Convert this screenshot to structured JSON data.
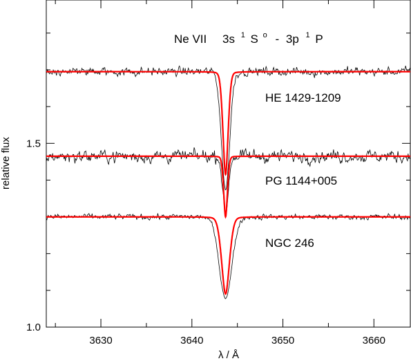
{
  "chart_data": {
    "type": "line",
    "title": {
      "ion": "Ne VII",
      "lower_cfg": "3s",
      "lower_mult": "1",
      "lower_term": "S",
      "lower_parity": "o",
      "dash": "-",
      "upper_cfg": "3p",
      "upper_mult": "1",
      "upper_term": "P"
    },
    "xlabel": "λ / Å",
    "ylabel": "relative flux",
    "xlim": [
      3624,
      3664
    ],
    "ylim": [
      1.0,
      1.89
    ],
    "x_ticks_major": [
      3630,
      3640,
      3650,
      3660
    ],
    "x_tick_labels": [
      "3630",
      "3640",
      "3650",
      "3660"
    ],
    "y_ticks_major": [
      1.0,
      1.5
    ],
    "y_tick_labels": [
      "1.0",
      "1.5"
    ],
    "y_ticks_minor": [
      1.1,
      1.2,
      1.3,
      1.4,
      1.6,
      1.7,
      1.8
    ],
    "line_center": 3643.7,
    "grid": false,
    "colors": {
      "model": "#ff0000",
      "observed": "#000000",
      "axes": "#000000"
    },
    "series": [
      {
        "name": "HE 1429-1209",
        "continuum": 1.695,
        "model_depth": 0.28,
        "model_width": 0.3,
        "obs_depth": 0.32,
        "obs_width": 0.45,
        "noise": 0.014
      },
      {
        "name": "PG 1144+005",
        "continuum": 1.465,
        "model_depth": 0.165,
        "model_width": 0.22,
        "obs_depth": 0.16,
        "obs_width": 0.3,
        "noise": 0.02
      },
      {
        "name": "NGC 246",
        "continuum": 1.3,
        "model_depth": 0.21,
        "model_width": 0.45,
        "obs_depth": 0.22,
        "obs_width": 0.7,
        "noise": 0.009
      }
    ]
  }
}
